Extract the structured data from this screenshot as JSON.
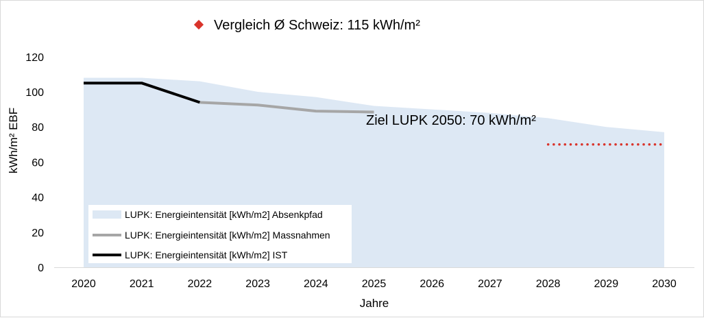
{
  "chart_data": {
    "type": "area",
    "xlabel": "Jahre",
    "ylabel": "kWh/m² EBF",
    "ylim": [
      0,
      120
    ],
    "yticks": [
      "0",
      "20",
      "40",
      "60",
      "80",
      "100",
      "120"
    ],
    "categories": [
      "2020",
      "2021",
      "2022",
      "2023",
      "2024",
      "2025",
      "2026",
      "2027",
      "2028",
      "2029",
      "2030"
    ],
    "grid": false,
    "legend_position": "bottom-left",
    "series": [
      {
        "name": "LUPK: Energieintensität [kWh/m2] Absenkpfad",
        "kind": "area",
        "color": "#dde8f4",
        "values": [
          108,
          108,
          106,
          100,
          97,
          92,
          90,
          88,
          85,
          80,
          77
        ]
      },
      {
        "name": "LUPK: Energieintensität [kWh/m2] Massnahmen",
        "kind": "line",
        "color": "#a6a6a6",
        "values": [
          null,
          null,
          94,
          92.5,
          89,
          88.5,
          null,
          null,
          null,
          null,
          null
        ]
      },
      {
        "name": "LUPK: Energieintensität [kWh/m2] IST",
        "kind": "line",
        "color": "#000000",
        "values": [
          105,
          105,
          94,
          null,
          null,
          null,
          null,
          null,
          null,
          null,
          null
        ]
      }
    ],
    "annotations": {
      "vergleich": {
        "text": "Vergleich Ø Schweiz: 115 kWh/m²",
        "value": 115,
        "marker_color": "#d9342b"
      },
      "ziel": {
        "text": "Ziel LUPK 2050: 70 kWh/m²",
        "value": 70,
        "x_from": "2028",
        "x_to": "2030",
        "color": "#d9342b"
      }
    }
  }
}
